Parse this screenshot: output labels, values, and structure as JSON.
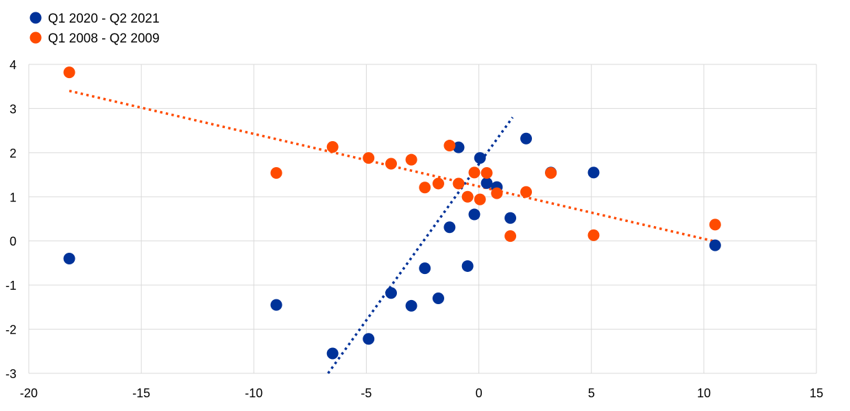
{
  "chart_data": {
    "type": "scatter",
    "title": "",
    "xlabel": "",
    "ylabel": "",
    "xlim": [
      -20,
      15
    ],
    "ylim": [
      -3,
      4
    ],
    "x_ticks": [
      -20,
      -15,
      -10,
      -5,
      0,
      5,
      10,
      15
    ],
    "y_ticks": [
      -3,
      -2,
      -1,
      0,
      1,
      2,
      3,
      4
    ],
    "x_tick_labels": [
      "-20",
      "-15",
      "-10",
      "-5",
      "0",
      "5",
      "10",
      "15"
    ],
    "y_tick_labels": [
      "-3",
      "-2",
      "-1",
      "0",
      "1",
      "2",
      "3",
      "4"
    ],
    "grid": true,
    "legend_position": "top-left",
    "series": [
      {
        "name": "Q1 2020 - Q2 2021",
        "color": "#003299",
        "points": [
          {
            "x": -18.2,
            "y": -0.4
          },
          {
            "x": -9.0,
            "y": -1.45
          },
          {
            "x": -6.5,
            "y": -2.55
          },
          {
            "x": -4.9,
            "y": -2.22
          },
          {
            "x": -3.9,
            "y": -1.18
          },
          {
            "x": -3.0,
            "y": -1.47
          },
          {
            "x": -2.4,
            "y": -0.62
          },
          {
            "x": -1.8,
            "y": -1.3
          },
          {
            "x": -1.3,
            "y": 0.31
          },
          {
            "x": -0.9,
            "y": 2.12
          },
          {
            "x": -0.5,
            "y": -0.57
          },
          {
            "x": -0.2,
            "y": 0.6
          },
          {
            "x": 0.05,
            "y": 1.88
          },
          {
            "x": 0.35,
            "y": 1.31
          },
          {
            "x": 0.8,
            "y": 1.22
          },
          {
            "x": 1.4,
            "y": 0.52
          },
          {
            "x": 2.1,
            "y": 2.32
          },
          {
            "x": 3.2,
            "y": 1.55
          },
          {
            "x": 5.1,
            "y": 1.55
          },
          {
            "x": 10.5,
            "y": -0.1
          }
        ],
        "trendline": {
          "style": "dotted",
          "x": [
            -6.7,
            1.5
          ],
          "y": [
            -3.0,
            2.8
          ]
        }
      },
      {
        "name": "Q1 2008 - Q2 2009",
        "color": "#ff4b00",
        "points": [
          {
            "x": -18.2,
            "y": 3.82
          },
          {
            "x": -9.0,
            "y": 1.54
          },
          {
            "x": -6.5,
            "y": 2.13
          },
          {
            "x": -4.9,
            "y": 1.88
          },
          {
            "x": -3.9,
            "y": 1.75
          },
          {
            "x": -3.0,
            "y": 1.84
          },
          {
            "x": -2.4,
            "y": 1.21
          },
          {
            "x": -1.8,
            "y": 1.3
          },
          {
            "x": -1.3,
            "y": 2.16
          },
          {
            "x": -0.9,
            "y": 1.3
          },
          {
            "x": -0.5,
            "y": 1.0
          },
          {
            "x": -0.2,
            "y": 1.55
          },
          {
            "x": 0.05,
            "y": 0.94
          },
          {
            "x": 0.35,
            "y": 1.54
          },
          {
            "x": 0.8,
            "y": 1.08
          },
          {
            "x": 1.4,
            "y": 0.11
          },
          {
            "x": 2.1,
            "y": 1.11
          },
          {
            "x": 3.2,
            "y": 1.54
          },
          {
            "x": 5.1,
            "y": 0.13
          },
          {
            "x": 10.5,
            "y": 0.37
          }
        ],
        "trendline": {
          "style": "dotted",
          "x": [
            -18.2,
            10.4
          ],
          "y": [
            3.4,
            0.0
          ]
        }
      }
    ]
  }
}
